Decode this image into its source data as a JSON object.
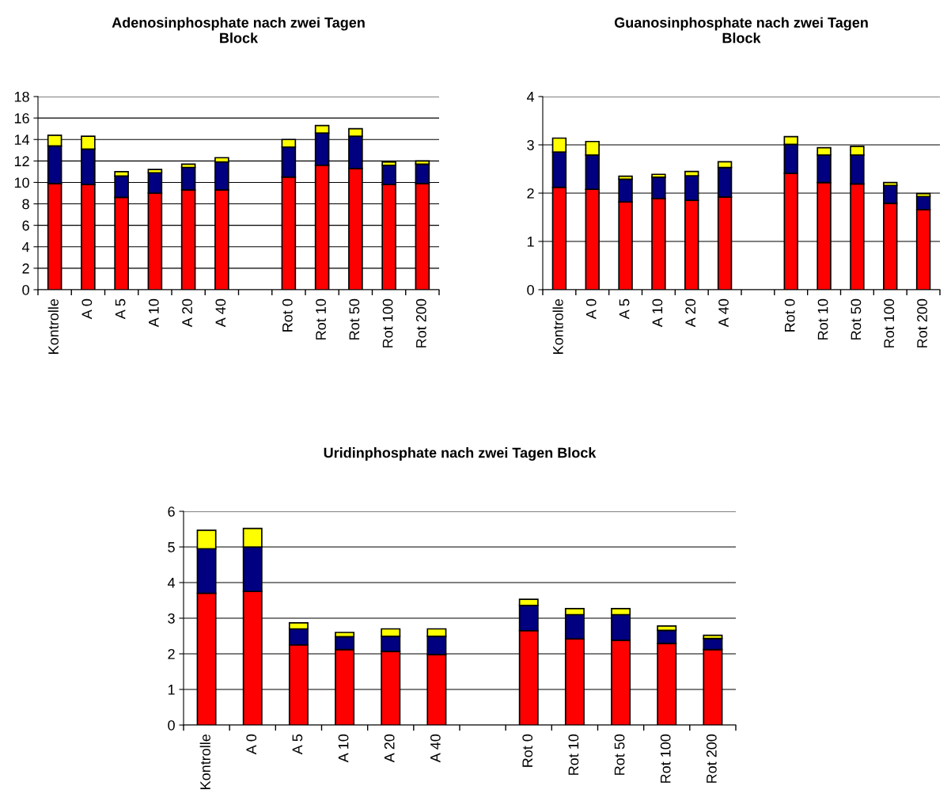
{
  "chart_data": [
    {
      "type": "bar",
      "title": "Adenosinphosphate nach zwei Tagen\nBlock",
      "stacked": true,
      "grid": "y",
      "categories": [
        "Kontrolle",
        "A 0",
        "A 5",
        "A 10",
        "A 20",
        "A 40",
        null,
        "Rot 0",
        "Rot 10",
        "Rot 50",
        "Rot 100",
        "Rot 200"
      ],
      "ylim": [
        0,
        18
      ],
      "yticks": [
        0,
        2,
        4,
        6,
        8,
        10,
        12,
        14,
        16,
        18
      ],
      "series": [
        {
          "color": "#ff0000",
          "values": [
            9.9,
            9.8,
            8.6,
            9.0,
            9.3,
            9.3,
            null,
            10.5,
            11.6,
            11.3,
            9.8,
            9.9
          ]
        },
        {
          "color": "#000080",
          "values": [
            3.5,
            3.3,
            2.0,
            1.9,
            2.1,
            2.6,
            null,
            2.8,
            3.0,
            3.0,
            1.8,
            1.8
          ]
        },
        {
          "color": "#ffff00",
          "values": [
            1.0,
            1.2,
            0.4,
            0.3,
            0.3,
            0.4,
            null,
            0.7,
            0.7,
            0.7,
            0.3,
            0.3
          ]
        }
      ]
    },
    {
      "type": "bar",
      "title": "Guanosinphosphate nach zwei Tagen\nBlock",
      "stacked": true,
      "grid": "y",
      "categories": [
        "Kontrolle",
        "A 0",
        "A 5",
        "A 10",
        "A 20",
        "A 40",
        null,
        "Rot 0",
        "Rot 10",
        "Rot 50",
        "Rot 100",
        "Rot 200"
      ],
      "ylim": [
        0,
        4
      ],
      "yticks": [
        0,
        1,
        2,
        3,
        4
      ],
      "series": [
        {
          "color": "#ff0000",
          "values": [
            2.12,
            2.08,
            1.82,
            1.89,
            1.85,
            1.92,
            null,
            2.41,
            2.22,
            2.19,
            1.79,
            1.66
          ]
        },
        {
          "color": "#000080",
          "values": [
            0.73,
            0.71,
            0.47,
            0.44,
            0.51,
            0.61,
            null,
            0.6,
            0.57,
            0.6,
            0.37,
            0.27
          ]
        },
        {
          "color": "#ffff00",
          "values": [
            0.29,
            0.28,
            0.06,
            0.06,
            0.09,
            0.12,
            null,
            0.16,
            0.15,
            0.18,
            0.06,
            0.06
          ]
        }
      ]
    },
    {
      "type": "bar",
      "title": "Uridinphosphate nach zwei Tagen Block",
      "stacked": true,
      "grid": "y",
      "categories": [
        "Kontrolle",
        "A 0",
        "A 5",
        "A 10",
        "A 20",
        "A 40",
        null,
        "Rot 0",
        "Rot 10",
        "Rot 50",
        "Rot 100",
        "Rot 200"
      ],
      "ylim": [
        0,
        6
      ],
      "yticks": [
        0,
        1,
        2,
        3,
        4,
        5,
        6
      ],
      "series": [
        {
          "color": "#ff0000",
          "values": [
            3.7,
            3.75,
            2.25,
            2.12,
            2.07,
            1.98,
            null,
            2.65,
            2.42,
            2.38,
            2.29,
            2.12
          ]
        },
        {
          "color": "#000080",
          "values": [
            1.25,
            1.25,
            0.45,
            0.36,
            0.42,
            0.51,
            null,
            0.71,
            0.68,
            0.72,
            0.37,
            0.31
          ]
        },
        {
          "color": "#ffff00",
          "values": [
            0.52,
            0.52,
            0.17,
            0.12,
            0.21,
            0.21,
            null,
            0.17,
            0.17,
            0.17,
            0.12,
            0.09
          ]
        }
      ]
    }
  ]
}
